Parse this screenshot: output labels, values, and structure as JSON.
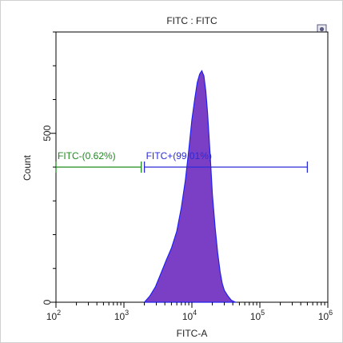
{
  "chart_data": {
    "type": "area",
    "title": "FITC : FITC",
    "xlabel": "FITC-A",
    "ylabel": "Count",
    "x_scale": "log",
    "xlim": [
      100,
      1000000
    ],
    "ylim": [
      0,
      800
    ],
    "x_ticks": [
      {
        "value": 100,
        "base": "10",
        "exp": "2"
      },
      {
        "value": 1000,
        "base": "10",
        "exp": "3"
      },
      {
        "value": 10000,
        "base": "10",
        "exp": "4"
      },
      {
        "value": 100000,
        "base": "10",
        "exp": "5"
      },
      {
        "value": 1000000,
        "base": "10",
        "exp": "6"
      }
    ],
    "y_ticks": [
      {
        "value": 0,
        "label": "0"
      },
      {
        "value": 500,
        "label": "500"
      }
    ],
    "grid": false,
    "fill_color": "#7b3fc6",
    "line_color": "#2222ee",
    "histogram": {
      "x": [
        2000,
        2400,
        2900,
        3500,
        4200,
        5000,
        6000,
        7000,
        8000,
        9000,
        10000,
        11000,
        12000,
        13000,
        14000,
        15000,
        16000,
        17000,
        18000,
        19000,
        20000,
        22000,
        24000,
        26000,
        28000,
        30000,
        34000,
        38000,
        44000
      ],
      "y": [
        0,
        18,
        45,
        85,
        125,
        160,
        210,
        280,
        360,
        450,
        540,
        600,
        650,
        675,
        685,
        670,
        625,
        560,
        480,
        400,
        320,
        220,
        145,
        90,
        55,
        35,
        18,
        6,
        0
      ]
    },
    "gates": [
      {
        "name": "FITC-",
        "percent": "(0.62%)",
        "x_start": 100,
        "x_end": 1800,
        "y": 400,
        "color": "#1f8a1f"
      },
      {
        "name": "FITC+",
        "percent": "(99.01%)",
        "x_start": 2000,
        "x_end": 500000,
        "y": 400,
        "color": "#2b2bd6"
      }
    ],
    "settings_icon": "gear-icon"
  }
}
